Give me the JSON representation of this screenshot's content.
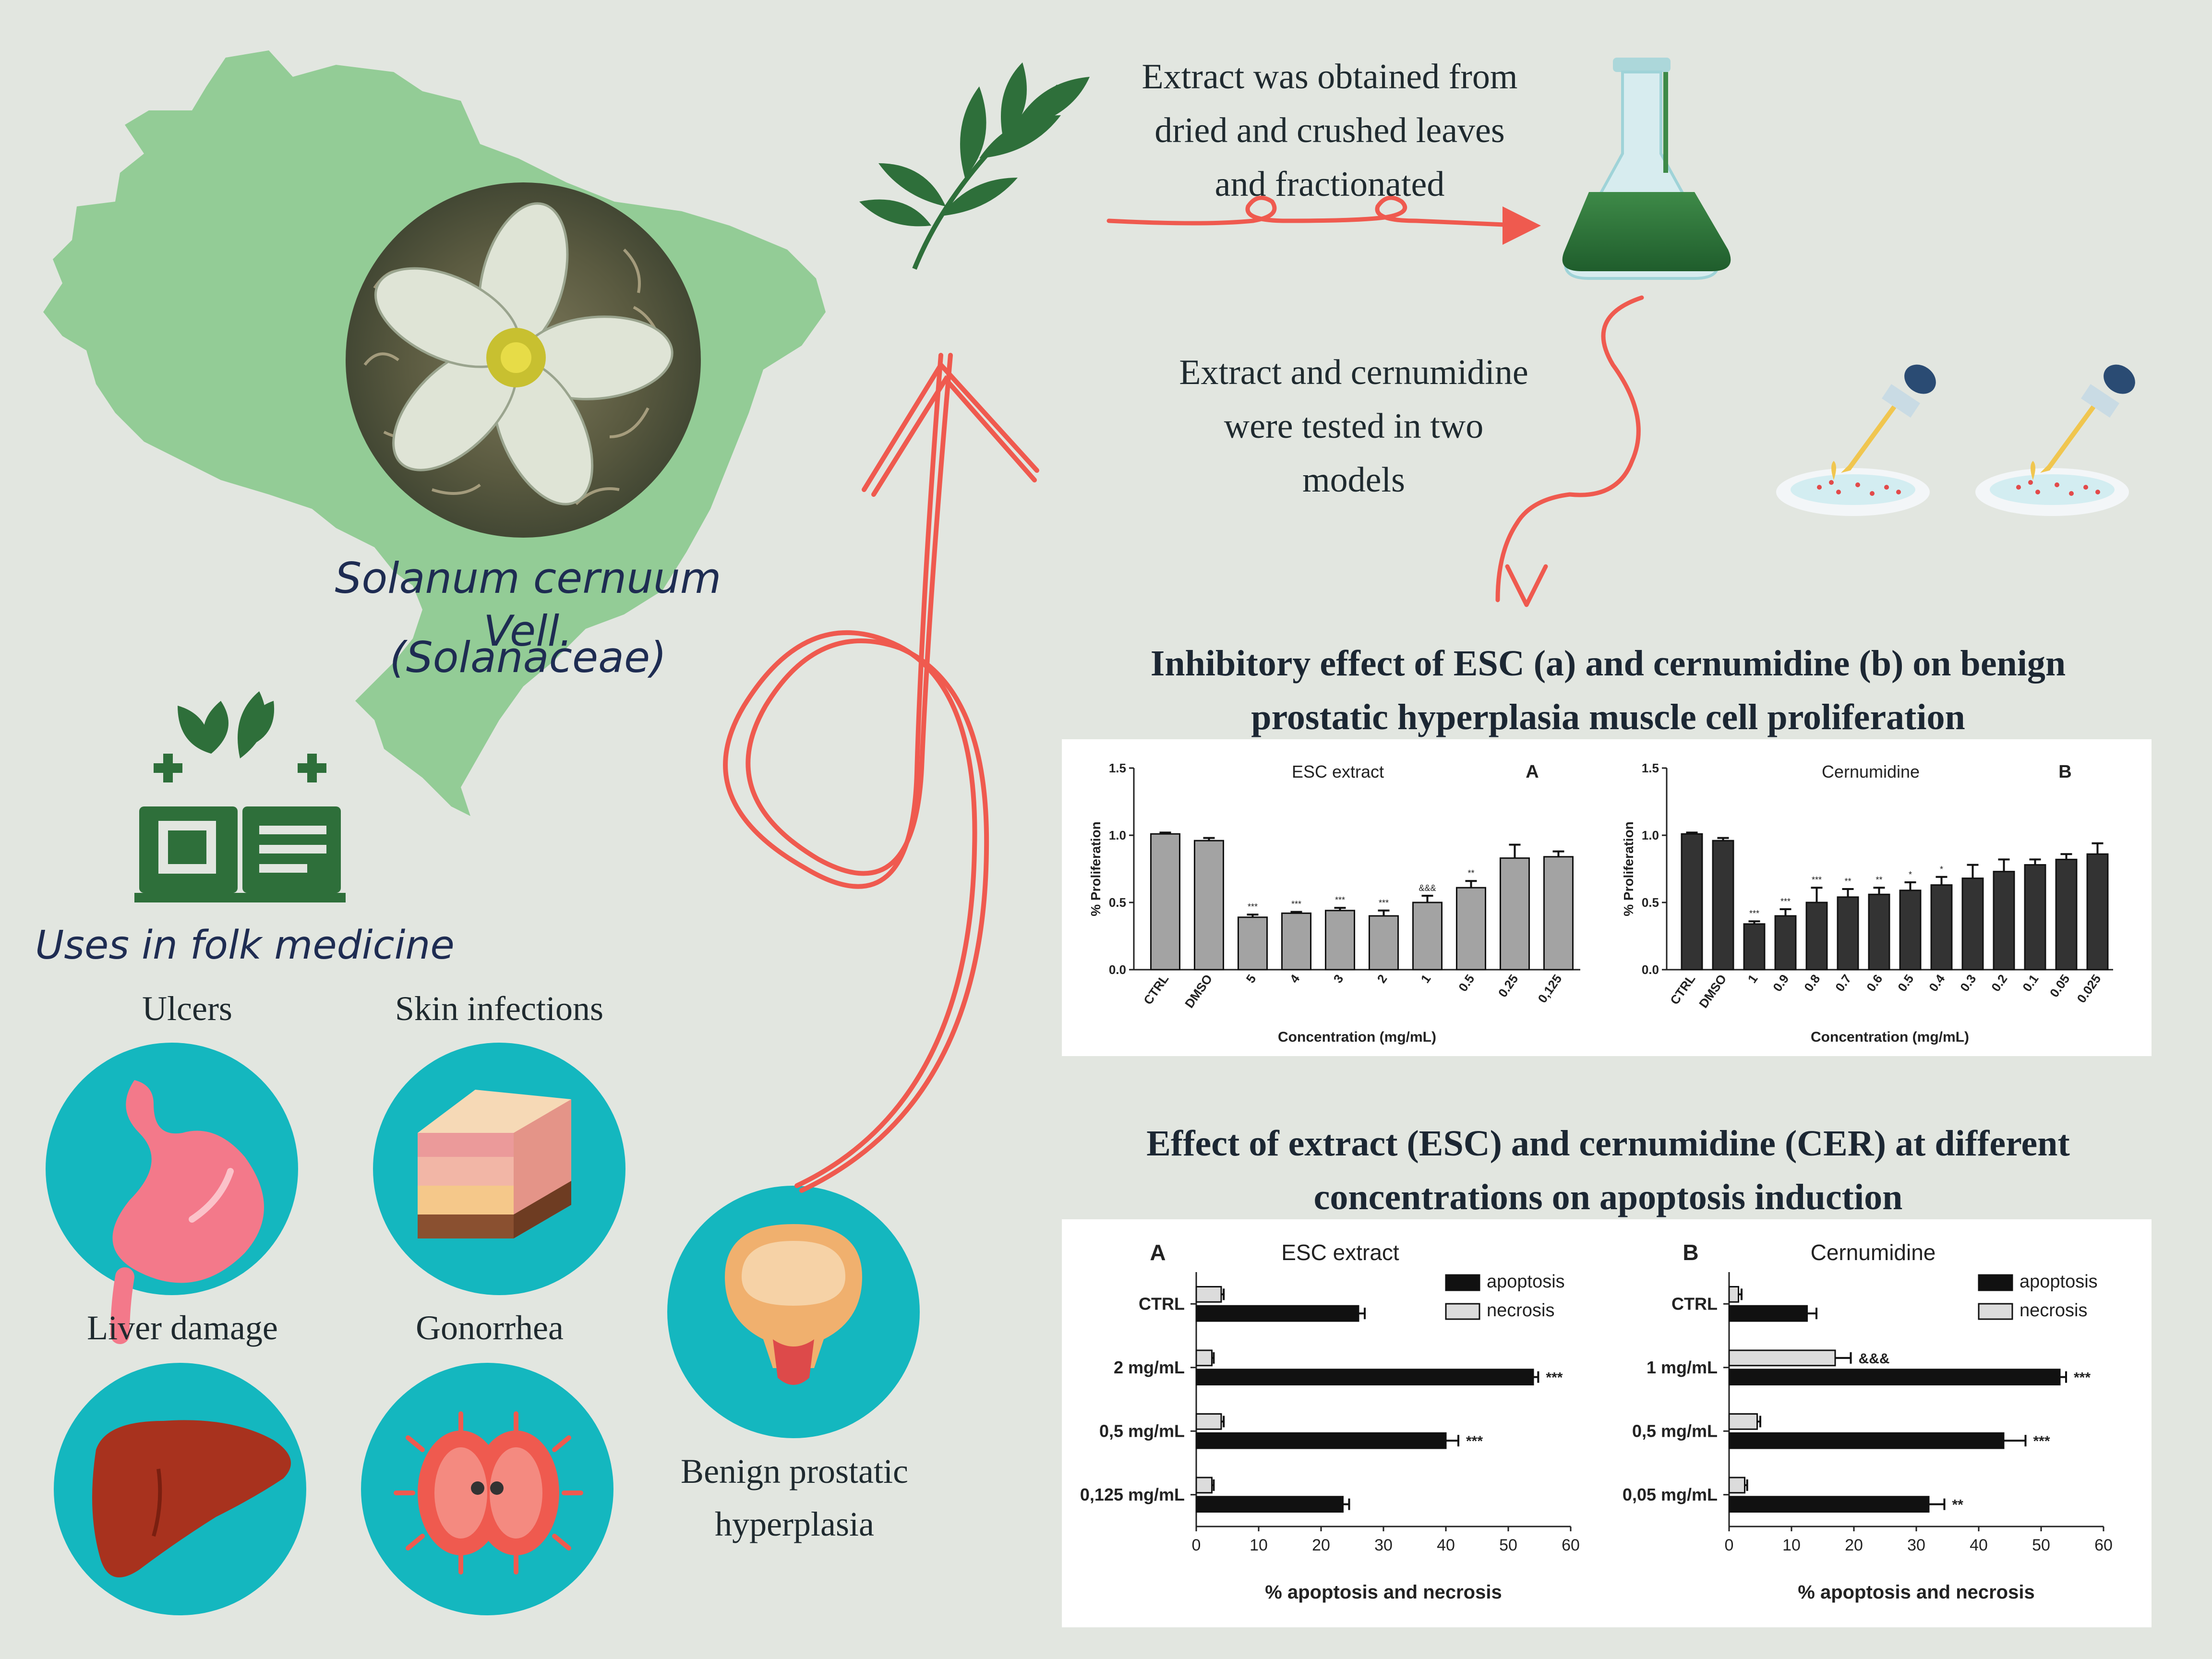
{
  "plant": {
    "name": "Solanum cernuum Vell.",
    "family": "(Solanaceae)"
  },
  "folk_medicine": {
    "title": "Uses in folk medicine",
    "uses": [
      "Ulcers",
      "Skin infections",
      "Liver damage",
      "Gonorrhea"
    ]
  },
  "bph_label": "Benign prostatic hyperplasia",
  "steps": {
    "extraction": "Extract was obtained from dried and crushed leaves and fractionated",
    "testing": "Extract and cernumidine were tested in two models"
  },
  "sections": {
    "proliferation_title": "Inhibitory effect of ESC (a) and cernumidine (b) on benign prostatic hyperplasia muscle cell proliferation",
    "apoptosis_title": "Effect of extract (ESC) and cernumidine (CER) at different concentrations on apoptosis induction"
  },
  "colors": {
    "background": "#e2e6e0",
    "map": "#93cc96",
    "teal": "#14b7bf",
    "arrow": "#ef5a4f",
    "green_dark": "#2e6f3a",
    "bar_gray": "#a3a3a3",
    "bar_black": "#111111"
  },
  "chart_data": [
    {
      "type": "bar",
      "title": "ESC extract",
      "panel": "A",
      "categories": [
        "CTRL",
        "DMSO",
        "5",
        "4",
        "3",
        "2",
        "1",
        "0.5",
        "0.25",
        "0,125"
      ],
      "values": [
        1.01,
        0.96,
        0.39,
        0.42,
        0.44,
        0.4,
        0.5,
        0.61,
        0.83,
        0.84
      ],
      "errors": [
        0.01,
        0.02,
        0.02,
        0.01,
        0.02,
        0.04,
        0.05,
        0.05,
        0.1,
        0.04
      ],
      "significance": [
        "",
        "",
        "***",
        "***",
        "***",
        "***",
        "&&&",
        "**",
        "",
        ""
      ],
      "ylabel": "% Proliferation",
      "xlabel": "Concentration (mg/mL)",
      "ylim": [
        0,
        1.5
      ],
      "yticks": [
        "0.0",
        "0.5",
        "1.0",
        "1.5"
      ]
    },
    {
      "type": "bar",
      "title": "Cernumidine",
      "panel": "B",
      "categories": [
        "CTRL",
        "DMSO",
        "1",
        "0.9",
        "0.8",
        "0.7",
        "0.6",
        "0.5",
        "0.4",
        "0.3",
        "0.2",
        "0.1",
        "0.05",
        "0.025"
      ],
      "values": [
        1.01,
        0.96,
        0.34,
        0.4,
        0.5,
        0.54,
        0.56,
        0.59,
        0.63,
        0.68,
        0.73,
        0.78,
        0.82,
        0.86
      ],
      "errors": [
        0.01,
        0.02,
        0.02,
        0.05,
        0.11,
        0.06,
        0.05,
        0.06,
        0.06,
        0.1,
        0.09,
        0.04,
        0.04,
        0.08
      ],
      "significance": [
        "",
        "",
        "***",
        "***",
        "***",
        "**",
        "**",
        "*",
        "*",
        "",
        "",
        "",
        "",
        ""
      ],
      "ylabel": "% Proliferation",
      "xlabel": "Concentration (mg/mL)",
      "ylim": [
        0,
        1.5
      ],
      "yticks": [
        "0.0",
        "0.5",
        "1.0",
        "1.5"
      ]
    },
    {
      "type": "bar",
      "orientation": "horizontal",
      "title": "ESC extract",
      "panel": "A",
      "categories": [
        "CTRL",
        "2 mg/mL",
        "0,5 mg/mL",
        "0,125 mg/mL"
      ],
      "series": [
        {
          "name": "necrosis",
          "values": [
            4,
            2.5,
            4,
            2.5
          ],
          "errors": [
            0.4,
            0.3,
            0.4,
            0.3
          ],
          "significance": [
            "",
            "",
            "",
            ""
          ]
        },
        {
          "name": "apoptosis",
          "values": [
            26,
            54,
            40,
            23.5
          ],
          "errors": [
            1.0,
            0.8,
            2.0,
            1.0
          ],
          "significance": [
            "",
            "***",
            "***",
            ""
          ]
        }
      ],
      "xlabel": "% apoptosis and necrosis",
      "xlim": [
        0,
        60
      ],
      "xticks": [
        "0",
        "10",
        "20",
        "30",
        "40",
        "50",
        "60"
      ],
      "legend": "top-right"
    },
    {
      "type": "bar",
      "orientation": "horizontal",
      "title": "Cernumidine",
      "panel": "B",
      "categories": [
        "CTRL",
        "1 mg/mL",
        "0,5 mg/mL",
        "0,05 mg/mL"
      ],
      "series": [
        {
          "name": "necrosis",
          "values": [
            1.5,
            17,
            4.5,
            2.5
          ],
          "errors": [
            0.5,
            2.5,
            0.5,
            0.4
          ],
          "significance": [
            "",
            "&&&",
            "",
            ""
          ]
        },
        {
          "name": "apoptosis",
          "values": [
            12.5,
            53,
            44,
            32
          ],
          "errors": [
            1.5,
            1.0,
            3.5,
            2.5
          ],
          "significance": [
            "",
            "***",
            "***",
            "**"
          ]
        }
      ],
      "xlabel": "% apoptosis and necrosis",
      "xlim": [
        0,
        60
      ],
      "xticks": [
        "0",
        "10",
        "20",
        "30",
        "40",
        "50",
        "60"
      ],
      "legend": "top-right"
    }
  ]
}
